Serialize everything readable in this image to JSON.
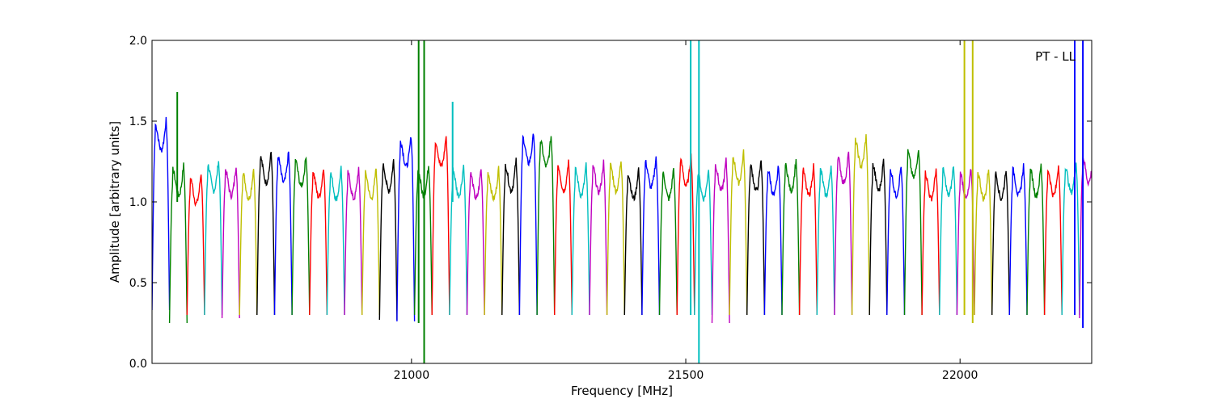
{
  "chart_data": {
    "type": "line",
    "xlabel": "Frequency [MHz]",
    "ylabel": "Amplitude [arbitrary units]",
    "annotation": "PT - LL",
    "xlim": [
      20527,
      22240
    ],
    "ylim": [
      0.0,
      2.0
    ],
    "xticks": [
      21000,
      21500,
      22000
    ],
    "xtick_labels": [
      "21000",
      "21500",
      "22000"
    ],
    "yticks": [
      0.0,
      0.5,
      1.0,
      1.5,
      2.0
    ],
    "ytick_labels": [
      "0.0",
      "0.5",
      "1.0",
      "1.5",
      "2.0"
    ],
    "grid": false,
    "color_cycle": [
      "#0000ff",
      "#008000",
      "#ff0000",
      "#00bfbf",
      "#bf00bf",
      "#bfbf00",
      "#000000"
    ],
    "band_width_mhz": 31.9,
    "band_start_mhz": 20527,
    "band_count": 54,
    "band_levels": [
      1.5,
      1.22,
      1.17,
      1.25,
      1.22,
      1.2,
      1.3,
      1.3,
      1.28,
      1.21,
      1.2,
      1.2,
      1.2,
      1.25,
      1.4,
      1.22,
      1.4,
      1.22,
      1.2,
      1.2,
      1.25,
      1.42,
      1.4,
      1.25,
      1.22,
      1.24,
      1.25,
      1.2,
      1.27,
      1.2,
      1.28,
      1.2,
      1.25,
      1.3,
      1.25,
      1.22,
      1.25,
      1.22,
      1.22,
      1.3,
      1.4,
      1.25,
      1.22,
      1.33,
      1.2,
      1.22,
      1.2,
      1.2,
      1.2,
      1.22,
      1.22,
      1.22,
      1.24,
      1.3
    ],
    "band_dips": [
      0.33,
      0.25,
      0.3,
      0.3,
      0.28,
      0.3,
      0.3,
      0.3,
      0.3,
      0.3,
      0.3,
      0.3,
      0.3,
      0.27,
      0.26,
      0.3,
      0.3,
      0.3,
      0.3,
      0.3,
      0.3,
      0.3,
      0.3,
      0.3,
      0.3,
      0.3,
      0.3,
      0.3,
      0.3,
      0.3,
      0.3,
      0.3,
      0.25,
      0.3,
      0.3,
      0.3,
      0.3,
      0.3,
      0.3,
      0.3,
      0.3,
      0.3,
      0.3,
      0.3,
      0.3,
      0.3,
      0.3,
      0.3,
      0.3,
      0.3,
      0.3,
      0.3,
      0.3,
      0.28
    ],
    "spikes": [
      {
        "x": 20573,
        "top": 1.68,
        "color": "#008000"
      },
      {
        "x": 21013,
        "top": 2.0,
        "bottom": 0.25,
        "color": "#008000"
      },
      {
        "x": 21023,
        "top": 2.0,
        "bottom": 0.0,
        "color": "#008000"
      },
      {
        "x": 21075,
        "top": 1.62,
        "color": "#00bfbf"
      },
      {
        "x": 21509,
        "top": 2.0,
        "bottom": 0.3,
        "color": "#00bfbf"
      },
      {
        "x": 21524,
        "top": 2.0,
        "bottom": 0.0,
        "color": "#00bfbf"
      },
      {
        "x": 22008,
        "top": 2.0,
        "bottom": 0.3,
        "color": "#bfbf00"
      },
      {
        "x": 22023,
        "top": 2.0,
        "bottom": 0.25,
        "color": "#bfbf00"
      },
      {
        "x": 22209,
        "top": 2.0,
        "bottom": 0.3,
        "color": "#0000ff"
      },
      {
        "x": 22224,
        "top": 2.0,
        "bottom": 0.22,
        "color": "#0000ff"
      }
    ]
  }
}
